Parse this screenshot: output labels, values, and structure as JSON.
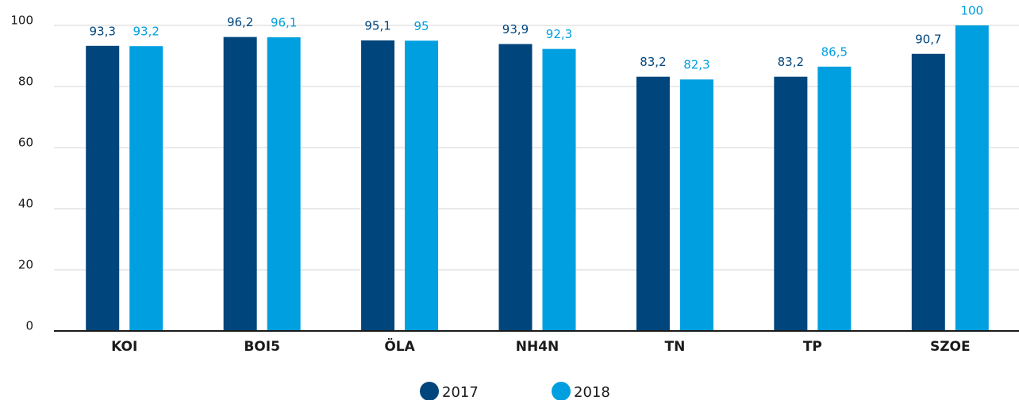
{
  "chart_data": {
    "type": "bar",
    "categories": [
      "KOI",
      "BOI5",
      "ÖLA",
      "NH4N",
      "TN",
      "TP",
      "SZOE"
    ],
    "series": [
      {
        "name": "2017",
        "color": "#00457c",
        "values": [
          93.3,
          96.2,
          95.1,
          93.9,
          83.2,
          83.2,
          90.7
        ],
        "value_labels": [
          "93,3",
          "96,2",
          "95,1",
          "93,9",
          "83,2",
          "83,2",
          "90,7"
        ]
      },
      {
        "name": "2018",
        "color": "#009fe0",
        "values": [
          93.2,
          96.1,
          95,
          92.3,
          82.3,
          86.5,
          100
        ],
        "value_labels": [
          "93,2",
          "96,1",
          "95",
          "92,3",
          "82,3",
          "86,5",
          "100"
        ]
      }
    ],
    "ylim": [
      0,
      100
    ],
    "yticks": [
      0,
      20,
      40,
      60,
      80,
      100
    ],
    "grid": true,
    "legend": "bottom"
  }
}
